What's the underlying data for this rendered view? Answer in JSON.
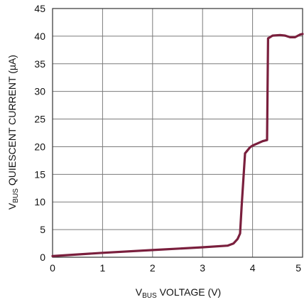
{
  "chart_data": {
    "type": "line",
    "title": "",
    "xlabel": {
      "prefix": "V",
      "sub": "BUS",
      "rest": " VOLTAGE (V)"
    },
    "ylabel": {
      "prefix": "V",
      "sub": "BUS",
      "rest": " QUIESCENT CURRENT (µA)"
    },
    "xlim": [
      0,
      5
    ],
    "ylim": [
      0,
      45
    ],
    "x_ticks": [
      "0",
      "1",
      "2",
      "3",
      "4",
      "5"
    ],
    "y_ticks": [
      "0",
      "5",
      "10",
      "15",
      "20",
      "25",
      "30",
      "35",
      "40",
      "45"
    ],
    "grid": true,
    "legend": "none",
    "series": [
      {
        "color": "#7a1f3d",
        "x": [
          0,
          1,
          2,
          3,
          3.5,
          3.62,
          3.7,
          3.75,
          3.78,
          3.85,
          3.95,
          4.0,
          4.1,
          4.2,
          4.29,
          4.31,
          4.4,
          4.55,
          4.65,
          4.75,
          4.85,
          4.95,
          5.0
        ],
        "y": [
          0.2,
          0.8,
          1.3,
          1.8,
          2.1,
          2.5,
          3.3,
          4.3,
          9.0,
          18.8,
          19.9,
          20.2,
          20.6,
          21.0,
          21.2,
          39.6,
          40.1,
          40.2,
          40.1,
          39.8,
          39.8,
          40.3,
          40.4
        ]
      }
    ]
  }
}
